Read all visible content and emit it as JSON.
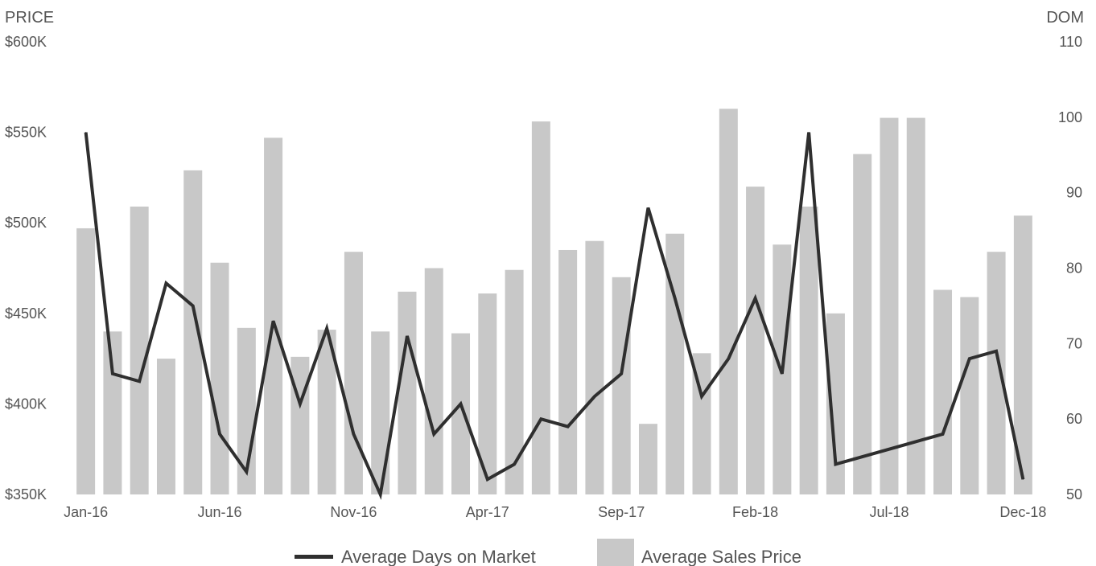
{
  "chart_data": {
    "type": "bar",
    "left_axis": {
      "title": "PRICE",
      "min": 350,
      "max": 600,
      "ticks": [
        {
          "value": 350,
          "label": "$350K"
        },
        {
          "value": 400,
          "label": "$400K"
        },
        {
          "value": 450,
          "label": "$450K"
        },
        {
          "value": 500,
          "label": "$500K"
        },
        {
          "value": 550,
          "label": "$550K"
        },
        {
          "value": 600,
          "label": "$600K"
        }
      ]
    },
    "right_axis": {
      "title": "DOM",
      "min": 50,
      "max": 110,
      "ticks": [
        {
          "value": 50,
          "label": "50"
        },
        {
          "value": 60,
          "label": "60"
        },
        {
          "value": 70,
          "label": "70"
        },
        {
          "value": 80,
          "label": "80"
        },
        {
          "value": 90,
          "label": "90"
        },
        {
          "value": 100,
          "label": "100"
        },
        {
          "value": 110,
          "label": "110"
        }
      ]
    },
    "categories": [
      "Jan-16",
      "Feb-16",
      "Mar-16",
      "Apr-16",
      "May-16",
      "Jun-16",
      "Jul-16",
      "Aug-16",
      "Sep-16",
      "Oct-16",
      "Nov-16",
      "Dec-16",
      "Jan-17",
      "Feb-17",
      "Mar-17",
      "Apr-17",
      "May-17",
      "Jun-17",
      "Jul-17",
      "Aug-17",
      "Sep-17",
      "Oct-17",
      "Nov-17",
      "Dec-17",
      "Jan-18",
      "Feb-18",
      "Mar-18",
      "Apr-18",
      "May-18",
      "Jun-18",
      "Jul-18",
      "Aug-18",
      "Sep-18",
      "Oct-18",
      "Nov-18",
      "Dec-18"
    ],
    "x_tick_labels": [
      {
        "index": 0,
        "label": "Jan-16"
      },
      {
        "index": 5,
        "label": "Jun-16"
      },
      {
        "index": 10,
        "label": "Nov-16"
      },
      {
        "index": 15,
        "label": "Apr-17"
      },
      {
        "index": 20,
        "label": "Sep-17"
      },
      {
        "index": 25,
        "label": "Feb-18"
      },
      {
        "index": 30,
        "label": "Jul-18"
      },
      {
        "index": 35,
        "label": "Dec-18"
      }
    ],
    "series": [
      {
        "name": "Average Sales Price",
        "type": "bar",
        "axis": "left",
        "color": "#c8c8c8",
        "values": [
          497,
          440,
          509,
          425,
          529,
          478,
          442,
          547,
          426,
          441,
          484,
          440,
          462,
          475,
          439,
          461,
          474,
          556,
          485,
          490,
          470,
          389,
          494,
          428,
          563,
          520,
          488,
          509,
          450,
          538,
          558,
          558,
          463,
          459,
          484,
          504
        ]
      },
      {
        "name": "Average Days on Market",
        "type": "line",
        "axis": "right",
        "color": "#2f2f2f",
        "values": [
          98,
          66,
          65,
          78,
          75,
          58,
          53,
          73,
          62,
          72,
          58,
          50,
          71,
          58,
          62,
          52,
          54,
          60,
          59,
          63,
          66,
          88,
          76,
          63,
          68,
          76,
          66,
          98,
          54,
          55,
          56,
          57,
          58,
          68,
          69,
          52
        ]
      }
    ],
    "legend": {
      "position": "bottom-center",
      "items": [
        {
          "label": "Average Days on Market",
          "kind": "line",
          "color": "#2f2f2f"
        },
        {
          "label": "Average Sales Price",
          "kind": "bar",
          "color": "#c8c8c8"
        }
      ]
    },
    "grid": false
  }
}
